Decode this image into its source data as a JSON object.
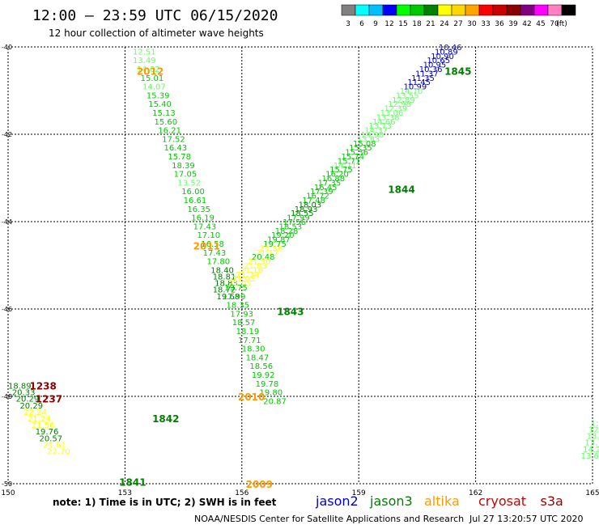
{
  "header": {
    "title": "12:00 – 23:59 UTC 06/15/2020",
    "subtitle": "12 hour collection of altimeter wave heights"
  },
  "legend": {
    "colors": [
      "#808080",
      "#00ffff",
      "#00bfff",
      "#0000ff",
      "#00ff00",
      "#00c800",
      "#008000",
      "#ffff00",
      "#ffd700",
      "#ffa500",
      "#ff0000",
      "#c80000",
      "#8b0000",
      "#800080",
      "#ff00ff",
      "#ff80c0",
      "#000000"
    ],
    "labels": [
      "3",
      "6",
      "9",
      "12",
      "15",
      "18",
      "21",
      "24",
      "27",
      "30",
      "33",
      "36",
      "39",
      "42",
      "45",
      "70",
      "(ft)"
    ]
  },
  "axes": {
    "x_ticks": [
      "150",
      "153",
      "156",
      "159",
      "162",
      "165"
    ],
    "y_ticks": [
      "-40",
      "-42",
      "-44",
      "-46",
      "-48",
      "-50"
    ]
  },
  "footer": {
    "note": "note: 1) Time is in UTC; 2) SWH is in feet",
    "satellites": [
      {
        "name": "jason2",
        "color": "#0000cc"
      },
      {
        "name": "jason3",
        "color": "#008000"
      },
      {
        "name": "altika",
        "color": "#ff9900"
      },
      {
        "name": "cryosat",
        "color": "#cc0000"
      },
      {
        "name": "s3a",
        "color": "#990000"
      }
    ],
    "credit": "NOAA/NESDIS Center for Satellite Applications and Research",
    "timestamp": "Jul 27 13:20:57 UTC 2020"
  },
  "track_labels": [
    {
      "text": "2012",
      "color": "#ff9900",
      "lon": 153.3,
      "lat": -40.55
    },
    {
      "text": "2011",
      "color": "#ff9900",
      "lon": 154.75,
      "lat": -44.55
    },
    {
      "text": "2010",
      "color": "#ff9900",
      "lon": 155.9,
      "lat": -48.0
    },
    {
      "text": "2009",
      "color": "#ff9900",
      "lon": 156.1,
      "lat": -50.0
    },
    {
      "text": "1845",
      "color": "#008000",
      "lon": 161.2,
      "lat": -40.55
    },
    {
      "text": "1844",
      "color": "#008000",
      "lon": 159.75,
      "lat": -43.25
    },
    {
      "text": "1843",
      "color": "#008000",
      "lon": 156.9,
      "lat": -46.05
    },
    {
      "text": "1842",
      "color": "#008000",
      "lon": 153.7,
      "lat": -48.5
    },
    {
      "text": "1841",
      "color": "#008000",
      "lon": 152.85,
      "lat": -49.95
    },
    {
      "text": "1238",
      "color": "#8b0000",
      "lon": 150.55,
      "lat": -47.75
    },
    {
      "text": "1237",
      "color": "#8b0000",
      "lon": 150.7,
      "lat": -48.05
    }
  ],
  "observations": [
    {
      "text": "12.51",
      "color": "#66ff66",
      "lon": 153.2,
      "lat": -40.1
    },
    {
      "text": "13.49",
      "color": "#66ff66",
      "lon": 153.2,
      "lat": -40.3
    },
    {
      "text": "14.62",
      "color": "#66ff66",
      "lon": 153.3,
      "lat": -40.5
    },
    {
      "text": "15.01",
      "color": "#00c800",
      "lon": 153.4,
      "lat": -40.7
    },
    {
      "text": "14.07",
      "color": "#66ff66",
      "lon": 153.45,
      "lat": -40.9
    },
    {
      "text": "15.39",
      "color": "#00c800",
      "lon": 153.55,
      "lat": -41.1
    },
    {
      "text": "15.40",
      "color": "#00c800",
      "lon": 153.6,
      "lat": -41.3
    },
    {
      "text": "15.13",
      "color": "#00c800",
      "lon": 153.7,
      "lat": -41.5
    },
    {
      "text": "15.60",
      "color": "#00c800",
      "lon": 153.75,
      "lat": -41.7
    },
    {
      "text": "16.21",
      "color": "#00c800",
      "lon": 153.85,
      "lat": -41.9
    },
    {
      "text": "17.52",
      "color": "#00c800",
      "lon": 153.95,
      "lat": -42.1
    },
    {
      "text": "16.43",
      "color": "#00c800",
      "lon": 154.0,
      "lat": -42.3
    },
    {
      "text": "15.78",
      "color": "#00c800",
      "lon": 154.1,
      "lat": -42.5
    },
    {
      "text": "18.39",
      "color": "#00c800",
      "lon": 154.2,
      "lat": -42.7
    },
    {
      "text": "17.05",
      "color": "#00c800",
      "lon": 154.25,
      "lat": -42.9
    },
    {
      "text": "13.52",
      "color": "#66ff66",
      "lon": 154.35,
      "lat": -43.1
    },
    {
      "text": "16.00",
      "color": "#00c800",
      "lon": 154.45,
      "lat": -43.3
    },
    {
      "text": "16.61",
      "color": "#00c800",
      "lon": 154.5,
      "lat": -43.5
    },
    {
      "text": "16.35",
      "color": "#00c800",
      "lon": 154.6,
      "lat": -43.7
    },
    {
      "text": "16.19",
      "color": "#00c800",
      "lon": 154.7,
      "lat": -43.9
    },
    {
      "text": "17.43",
      "color": "#00c800",
      "lon": 154.75,
      "lat": -44.1
    },
    {
      "text": "17.10",
      "color": "#00c800",
      "lon": 154.85,
      "lat": -44.3
    },
    {
      "text": "16.58",
      "color": "#00c800",
      "lon": 154.95,
      "lat": -44.5
    },
    {
      "text": "17.43",
      "color": "#00c800",
      "lon": 155.0,
      "lat": -44.7
    },
    {
      "text": "17.80",
      "color": "#00c800",
      "lon": 155.1,
      "lat": -44.9
    },
    {
      "text": "18.40",
      "color": "#008000",
      "lon": 155.2,
      "lat": -45.1
    },
    {
      "text": "18.81",
      "color": "#008000",
      "lon": 155.25,
      "lat": -45.25
    },
    {
      "text": "18.83",
      "color": "#008000",
      "lon": 155.3,
      "lat": -45.4
    },
    {
      "text": "18.72",
      "color": "#008000",
      "lon": 155.25,
      "lat": -45.55
    },
    {
      "text": "19.68",
      "color": "#008000",
      "lon": 155.35,
      "lat": -45.7
    },
    {
      "text": "17.99",
      "color": "#00c800",
      "lon": 155.5,
      "lat": -45.7
    },
    {
      "text": "18.35",
      "color": "#00c800",
      "lon": 155.6,
      "lat": -45.9
    },
    {
      "text": "17.93",
      "color": "#00c800",
      "lon": 155.7,
      "lat": -46.1
    },
    {
      "text": "18.57",
      "color": "#00c800",
      "lon": 155.75,
      "lat": -46.3
    },
    {
      "text": "18.19",
      "color": "#00c800",
      "lon": 155.85,
      "lat": -46.5
    },
    {
      "text": "17.71",
      "color": "#00c800",
      "lon": 155.9,
      "lat": -46.7
    },
    {
      "text": "18.30",
      "color": "#00c800",
      "lon": 156.0,
      "lat": -46.9
    },
    {
      "text": "18.47",
      "color": "#00c800",
      "lon": 156.1,
      "lat": -47.1
    },
    {
      "text": "18.56",
      "color": "#00c800",
      "lon": 156.2,
      "lat": -47.3
    },
    {
      "text": "19.92",
      "color": "#00c800",
      "lon": 156.25,
      "lat": -47.5
    },
    {
      "text": "19.78",
      "color": "#00c800",
      "lon": 156.35,
      "lat": -47.7
    },
    {
      "text": "19.80",
      "color": "#00c800",
      "lon": 156.45,
      "lat": -47.9
    },
    {
      "text": "20.87",
      "color": "#00c800",
      "lon": 156.55,
      "lat": -48.1
    },
    {
      "text": "10.46",
      "color": "#0000cc",
      "lon": 161.05,
      "lat": -40.0
    },
    {
      "text": "10.89",
      "color": "#0000cc",
      "lon": 160.95,
      "lat": -40.1
    },
    {
      "text": "10.90",
      "color": "#0000cc",
      "lon": 160.85,
      "lat": -40.2
    },
    {
      "text": "10.65",
      "color": "#0000cc",
      "lon": 160.75,
      "lat": -40.3
    },
    {
      "text": "10.95",
      "color": "#0000cc",
      "lon": 160.65,
      "lat": -40.4
    },
    {
      "text": "10.36",
      "color": "#0000cc",
      "lon": 160.55,
      "lat": -40.5
    },
    {
      "text": "11.37",
      "color": "#0000cc",
      "lon": 160.45,
      "lat": -40.6
    },
    {
      "text": "11.35",
      "color": "#0000cc",
      "lon": 160.35,
      "lat": -40.7
    },
    {
      "text": "11.45",
      "color": "#0000cc",
      "lon": 160.25,
      "lat": -40.8
    },
    {
      "text": "10.99",
      "color": "#0000cc",
      "lon": 160.15,
      "lat": -40.9
    },
    {
      "text": "14.70",
      "color": "#66ff66",
      "lon": 160.05,
      "lat": -41.0
    },
    {
      "text": "13.55",
      "color": "#66ff66",
      "lon": 159.95,
      "lat": -41.1
    },
    {
      "text": "12.89",
      "color": "#66ff66",
      "lon": 159.85,
      "lat": -41.2
    },
    {
      "text": "12.98",
      "color": "#66ff66",
      "lon": 159.75,
      "lat": -41.3
    },
    {
      "text": "12.39",
      "color": "#66ff66",
      "lon": 159.65,
      "lat": -41.4
    },
    {
      "text": "13.06",
      "color": "#66ff66",
      "lon": 159.55,
      "lat": -41.5
    },
    {
      "text": "13.38",
      "color": "#66ff66",
      "lon": 159.45,
      "lat": -41.6
    },
    {
      "text": "14.66",
      "color": "#66ff66",
      "lon": 159.35,
      "lat": -41.7
    },
    {
      "text": "13.73",
      "color": "#66ff66",
      "lon": 159.25,
      "lat": -41.8
    },
    {
      "text": "14.37",
      "color": "#66ff66",
      "lon": 159.15,
      "lat": -41.9
    },
    {
      "text": "14.98",
      "color": "#66ff66",
      "lon": 159.05,
      "lat": -42.0
    },
    {
      "text": "13.83",
      "color": "#66ff66",
      "lon": 158.95,
      "lat": -42.1
    },
    {
      "text": "15.08",
      "color": "#00c800",
      "lon": 158.85,
      "lat": -42.2
    },
    {
      "text": "15.35",
      "color": "#00c800",
      "lon": 158.75,
      "lat": -42.3
    },
    {
      "text": "15.36",
      "color": "#00c800",
      "lon": 158.65,
      "lat": -42.4
    },
    {
      "text": "15.74",
      "color": "#00c800",
      "lon": 158.55,
      "lat": -42.5
    },
    {
      "text": "15.71",
      "color": "#00c800",
      "lon": 158.45,
      "lat": -42.6
    },
    {
      "text": "14.71",
      "color": "#66ff66",
      "lon": 158.35,
      "lat": -42.7
    },
    {
      "text": "15.75",
      "color": "#00c800",
      "lon": 158.25,
      "lat": -42.8
    },
    {
      "text": "16.20",
      "color": "#00c800",
      "lon": 158.15,
      "lat": -42.9
    },
    {
      "text": "16.88",
      "color": "#00c800",
      "lon": 158.05,
      "lat": -43.0
    },
    {
      "text": "17.35",
      "color": "#00c800",
      "lon": 157.95,
      "lat": -43.1
    },
    {
      "text": "16.45",
      "color": "#00c800",
      "lon": 157.85,
      "lat": -43.2
    },
    {
      "text": "17.39",
      "color": "#00c800",
      "lon": 157.75,
      "lat": -43.3
    },
    {
      "text": "16.72",
      "color": "#00c800",
      "lon": 157.65,
      "lat": -43.4
    },
    {
      "text": "17.48",
      "color": "#00c800",
      "lon": 157.55,
      "lat": -43.5
    },
    {
      "text": "18.03",
      "color": "#008000",
      "lon": 157.45,
      "lat": -43.6
    },
    {
      "text": "18.93",
      "color": "#008000",
      "lon": 157.35,
      "lat": -43.7
    },
    {
      "text": "18.55",
      "color": "#008000",
      "lon": 157.25,
      "lat": -43.8
    },
    {
      "text": "17.99",
      "color": "#00c800",
      "lon": 157.15,
      "lat": -43.9
    },
    {
      "text": "17.56",
      "color": "#00c800",
      "lon": 157.05,
      "lat": -44.0
    },
    {
      "text": "18.53",
      "color": "#00c800",
      "lon": 156.95,
      "lat": -44.1
    },
    {
      "text": "18.28",
      "color": "#00c800",
      "lon": 156.85,
      "lat": -44.2
    },
    {
      "text": "19.20",
      "color": "#00c800",
      "lon": 156.75,
      "lat": -44.3
    },
    {
      "text": "19.87",
      "color": "#00c800",
      "lon": 156.65,
      "lat": -44.4
    },
    {
      "text": "19.75",
      "color": "#00c800",
      "lon": 156.55,
      "lat": -44.5
    },
    {
      "text": "21.56",
      "color": "#ffff00",
      "lon": 156.45,
      "lat": -44.6
    },
    {
      "text": "21.17",
      "color": "#ffff00",
      "lon": 156.35,
      "lat": -44.7
    },
    {
      "text": "20.48",
      "color": "#00c800",
      "lon": 156.25,
      "lat": -44.8
    },
    {
      "text": "21.30",
      "color": "#ffff00",
      "lon": 156.15,
      "lat": -44.9
    },
    {
      "text": "21.83",
      "color": "#ffff00",
      "lon": 156.05,
      "lat": -45.0
    },
    {
      "text": "21.16",
      "color": "#ffff00",
      "lon": 155.95,
      "lat": -45.1
    },
    {
      "text": "21.34",
      "color": "#ffff00",
      "lon": 155.85,
      "lat": -45.2
    },
    {
      "text": "21.03",
      "color": "#ffff00",
      "lon": 155.75,
      "lat": -45.3
    },
    {
      "text": "21.05",
      "color": "#ffff00",
      "lon": 155.65,
      "lat": -45.4
    },
    {
      "text": "19.75",
      "color": "#00c800",
      "lon": 155.55,
      "lat": -45.5
    },
    {
      "text": "18.89",
      "color": "#008000",
      "lon": 150.0,
      "lat": -47.75
    },
    {
      "text": "20.33",
      "color": "#008000",
      "lon": 150.1,
      "lat": -47.9
    },
    {
      "text": "20.29",
      "color": "#008000",
      "lon": 150.2,
      "lat": -48.05
    },
    {
      "text": "20.29",
      "color": "#008000",
      "lon": 150.3,
      "lat": -48.2
    },
    {
      "text": "22.24",
      "color": "#ffff00",
      "lon": 150.4,
      "lat": -48.35
    },
    {
      "text": "21.24",
      "color": "#ffff00",
      "lon": 150.5,
      "lat": -48.5
    },
    {
      "text": "21.56",
      "color": "#ffff00",
      "lon": 150.6,
      "lat": -48.65
    },
    {
      "text": "19.76",
      "color": "#008000",
      "lon": 150.7,
      "lat": -48.8
    },
    {
      "text": "20.57",
      "color": "#008000",
      "lon": 150.8,
      "lat": -48.95
    },
    {
      "text": "21.61",
      "color": "#ffff00",
      "lon": 150.9,
      "lat": -49.1
    },
    {
      "text": "22.70",
      "color": "#ffff00",
      "lon": 151.0,
      "lat": -49.25
    },
    {
      "text": "1:",
      "color": "#66ff66",
      "lon": 164.95,
      "lat": -48.6
    },
    {
      "text": "12",
      "color": "#66ff66",
      "lon": 164.9,
      "lat": -48.75
    },
    {
      "text": "13.",
      "color": "#66ff66",
      "lon": 164.85,
      "lat": -48.9
    },
    {
      "text": "13.7",
      "color": "#66ff66",
      "lon": 164.8,
      "lat": -49.05
    },
    {
      "text": "14.21",
      "color": "#66ff66",
      "lon": 164.75,
      "lat": -49.2
    },
    {
      "text": "13.60",
      "color": "#66ff66",
      "lon": 164.7,
      "lat": -49.35
    }
  ]
}
